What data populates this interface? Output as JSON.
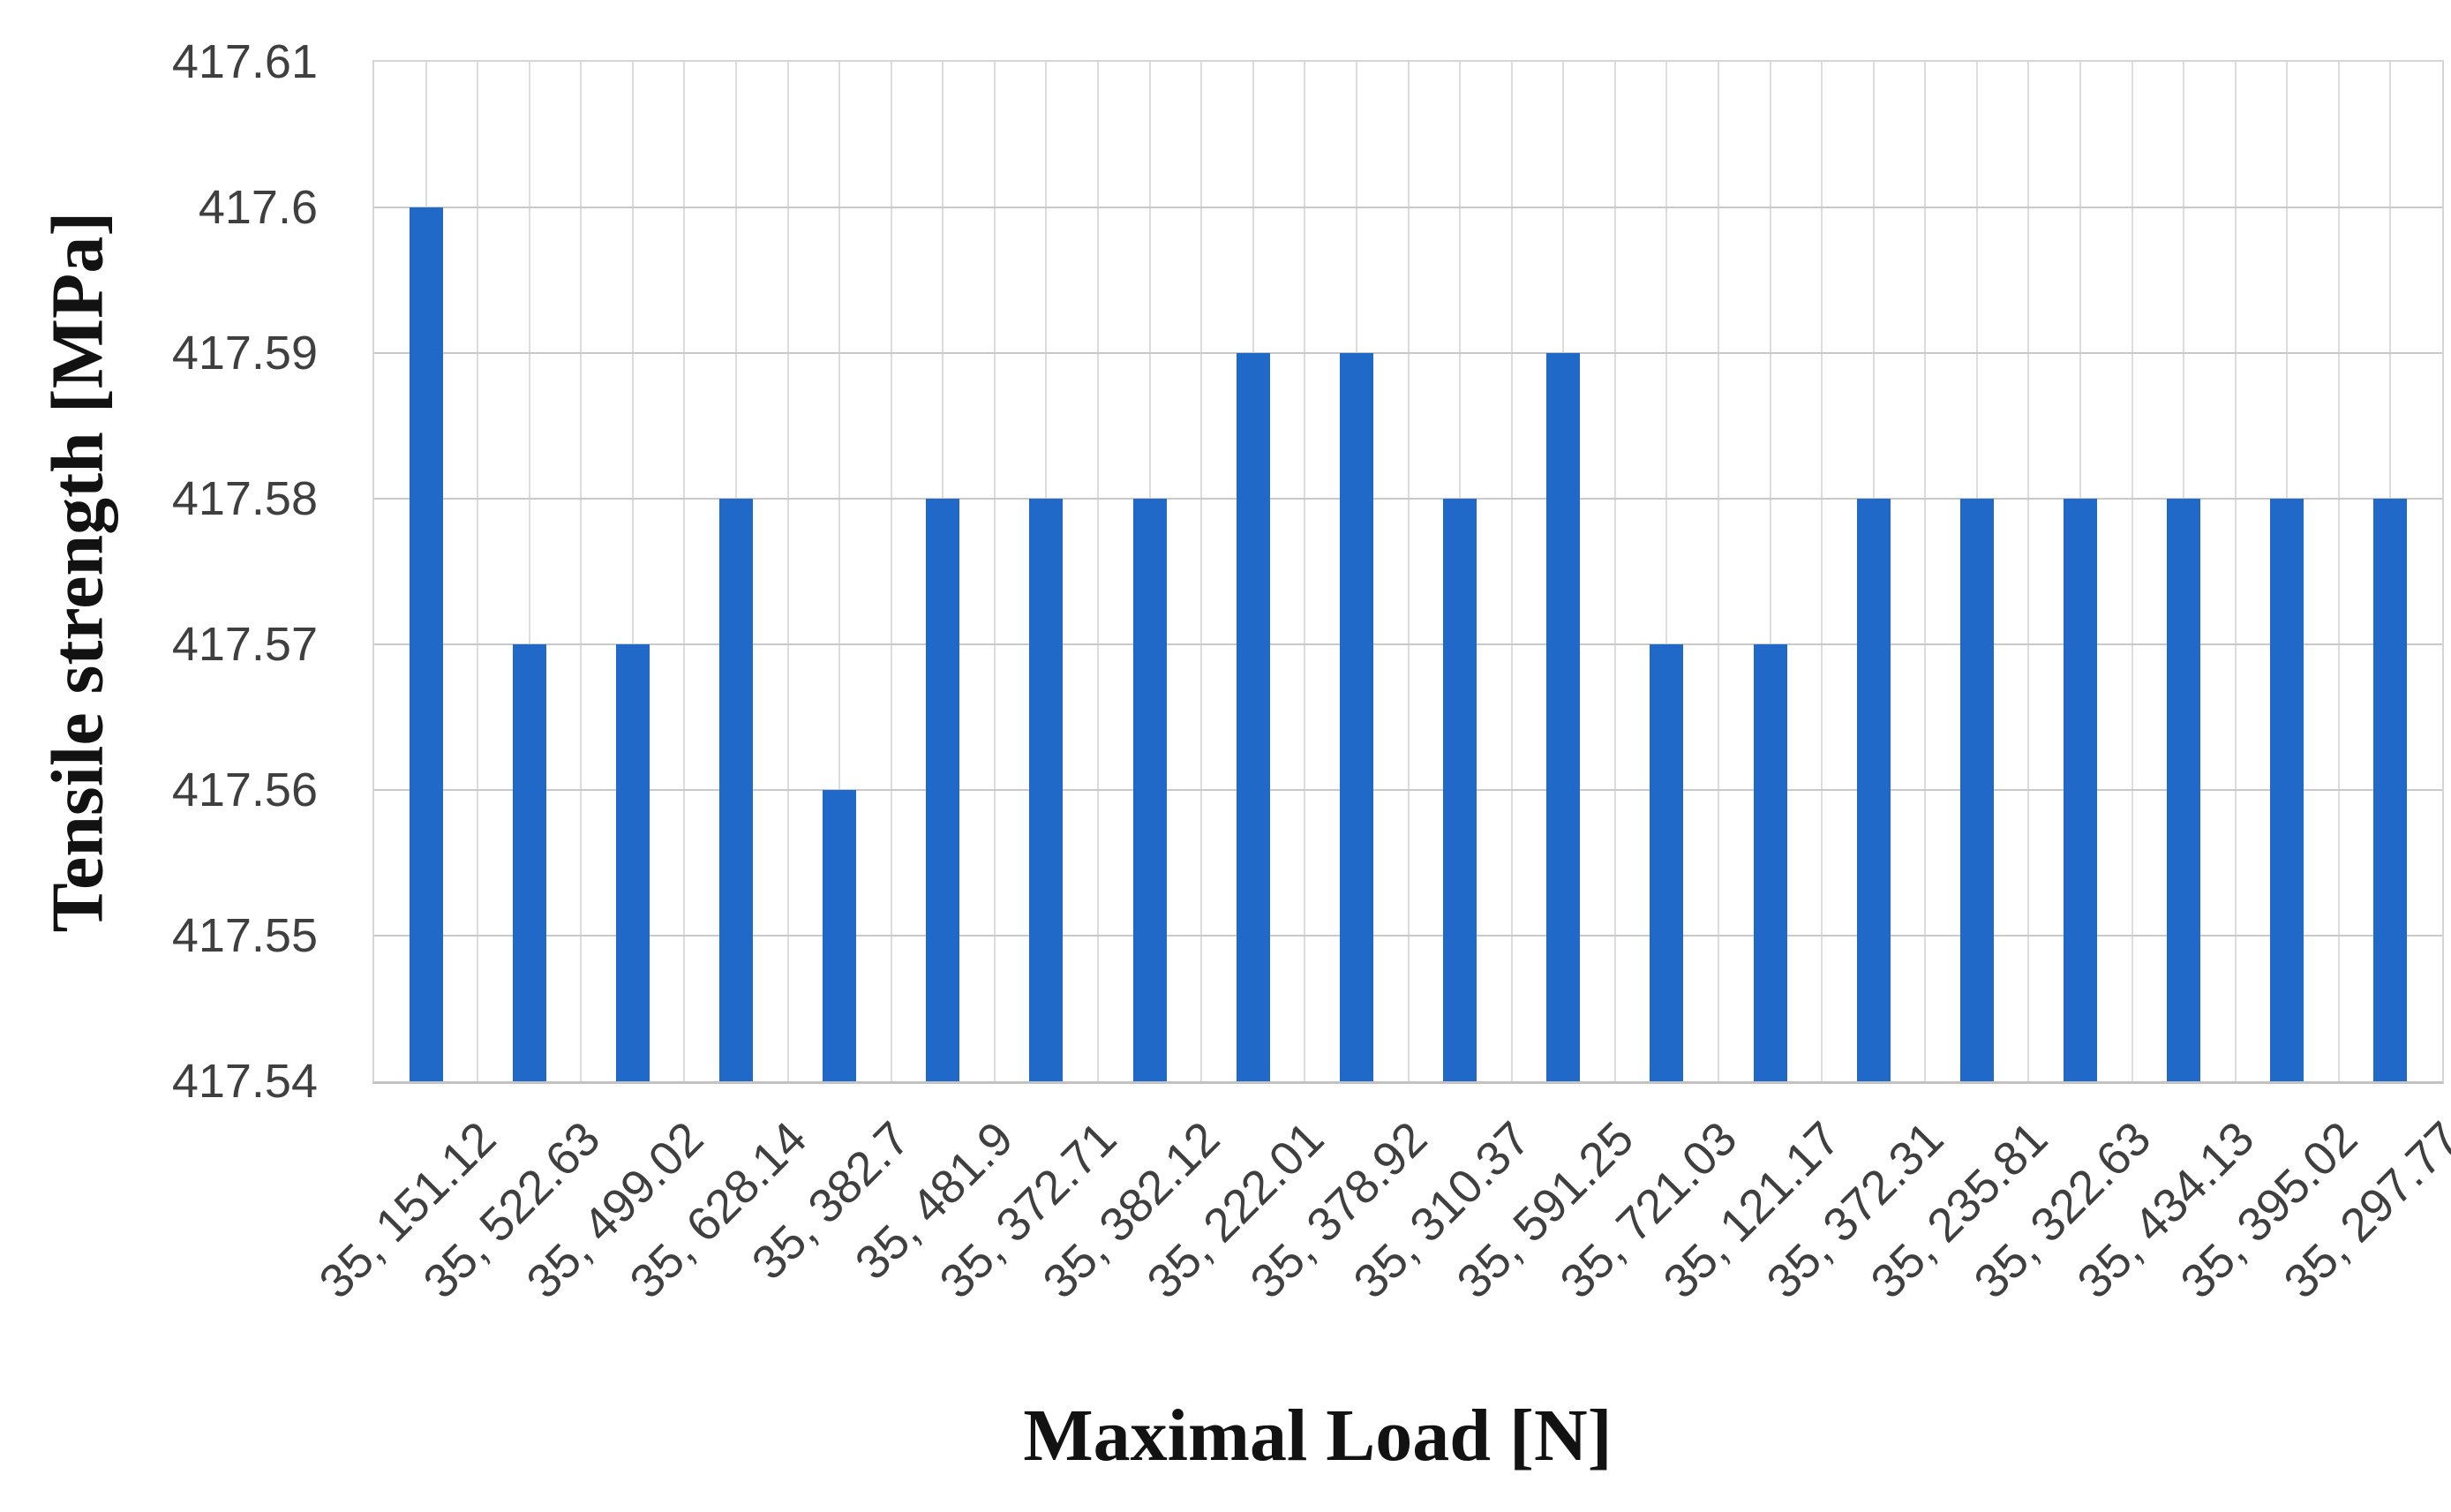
{
  "chart_data": {
    "type": "bar",
    "title": "",
    "xlabel": "Maximal Load [N]",
    "ylabel": "Tensile strength [MPa]",
    "categories": [
      "35, 151.12",
      "35, 522.63",
      "35, 499.02",
      "35, 628.14",
      "35, 382.7",
      "35, 481.9",
      "35, 372.71",
      "35, 382.12",
      "35, 222.01",
      "35, 378.92",
      "35, 310.37",
      "35, 591.25",
      "35, 721.03",
      "35, 121.17",
      "35, 372.31",
      "35, 235.81",
      "35, 322.63",
      "35, 434.13",
      "35, 395.02",
      "35, 297.77"
    ],
    "values": [
      417.6,
      417.57,
      417.57,
      417.58,
      417.56,
      417.58,
      417.58,
      417.58,
      417.59,
      417.59,
      417.58,
      417.59,
      417.57,
      417.57,
      417.58,
      417.58,
      417.58,
      417.58,
      417.58,
      417.58
    ],
    "ylim": [
      417.54,
      417.61
    ],
    "ytick_labels": [
      "417.54",
      "417.55",
      "417.56",
      "417.57",
      "417.58",
      "417.59",
      "417.6",
      "417.61"
    ],
    "grid": true,
    "legend_position": "none",
    "colors": {
      "bar": "#2169C8",
      "h_grid": "#C9C9C9",
      "v_grid": "#DCDCDC",
      "axis_line": "#C2C2C2",
      "tick_text": "#3F3F3F",
      "title_text": "#121212"
    }
  }
}
